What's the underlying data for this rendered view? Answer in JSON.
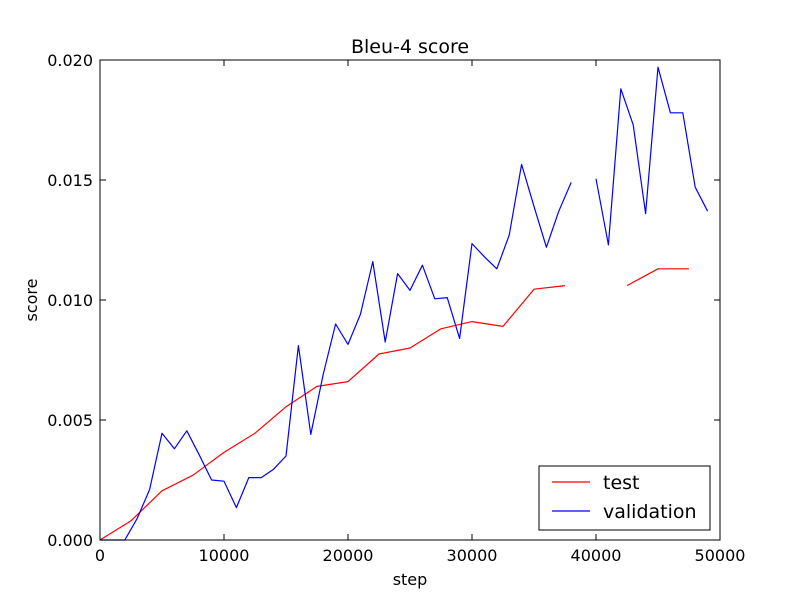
{
  "chart_data": {
    "type": "line",
    "title": "Bleu-4 score",
    "xlabel": "step",
    "ylabel": "score",
    "xlim": [
      0,
      50000
    ],
    "ylim": [
      0,
      0.02
    ],
    "xticks": [
      0,
      10000,
      20000,
      30000,
      40000,
      50000
    ],
    "xtick_labels": [
      "0",
      "10000",
      "20000",
      "30000",
      "40000",
      "50000"
    ],
    "yticks": [
      0,
      0.005,
      0.01,
      0.015,
      0.02
    ],
    "ytick_labels": [
      "0.000",
      "0.005",
      "0.010",
      "0.015",
      "0.020"
    ],
    "grid": false,
    "legend_position": "bottom-right",
    "series": [
      {
        "name": "test",
        "color": "#ff0000",
        "x": [
          0,
          2500,
          5000,
          7500,
          10000,
          12500,
          15000,
          17500,
          20000,
          22500,
          25000,
          27500,
          30000,
          32500,
          35000,
          37500,
          null,
          42500,
          45000,
          47500
        ],
        "y": [
          0.0,
          0.0008,
          0.00205,
          0.0027,
          0.00365,
          0.00445,
          0.00555,
          0.0064,
          0.0066,
          0.00775,
          0.008,
          0.0088,
          0.0091,
          0.0089,
          0.01045,
          0.0106,
          null,
          0.0106,
          0.0113,
          0.0113
        ]
      },
      {
        "name": "validation",
        "color": "#0000ff",
        "x": [
          0,
          1000,
          2000,
          3000,
          4000,
          5000,
          6000,
          7000,
          8000,
          9000,
          10000,
          11000,
          12000,
          13000,
          14000,
          15000,
          16000,
          17000,
          18000,
          19000,
          20000,
          21000,
          22000,
          23000,
          24000,
          25000,
          26000,
          27000,
          28000,
          29000,
          30000,
          31000,
          32000,
          33000,
          34000,
          35000,
          36000,
          37000,
          38000,
          null,
          40000,
          41000,
          42000,
          43000,
          44000,
          45000,
          46000,
          47000,
          48000,
          49000
        ],
        "y": [
          0.0,
          0.0,
          0.0,
          0.0009,
          0.0021,
          0.00445,
          0.0038,
          0.00455,
          0.00355,
          0.0025,
          0.00245,
          0.00135,
          0.0026,
          0.0026,
          0.00295,
          0.0035,
          0.0081,
          0.0044,
          0.0069,
          0.009,
          0.00815,
          0.0094,
          0.0116,
          0.00825,
          0.0111,
          0.0104,
          0.01145,
          0.01005,
          0.0101,
          0.0084,
          0.01235,
          0.0118,
          0.0113,
          0.0127,
          0.01565,
          0.0139,
          0.0122,
          0.0137,
          0.0149,
          null,
          0.01505,
          0.0123,
          0.0188,
          0.0173,
          0.0136,
          0.0197,
          0.0178,
          0.0178,
          0.0147,
          0.0137
        ]
      }
    ]
  }
}
